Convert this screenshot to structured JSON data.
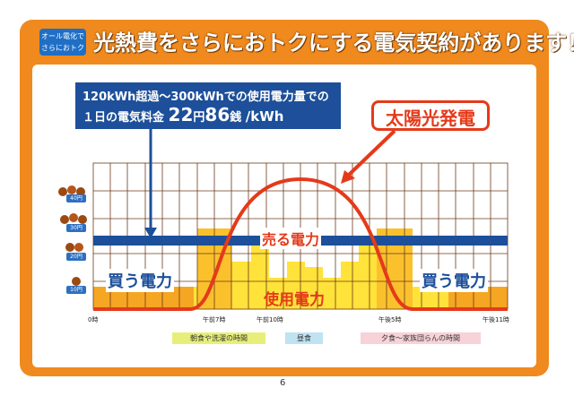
{
  "badge": {
    "line1": "オール電化で",
    "line2": "さらにおトク"
  },
  "headline": "光熱費をさらにおトクにする電気契約があります！",
  "callout": {
    "line1": "120kWh超過～300kWhでの使用電力量での",
    "line2_prefix": "１日の電気料金",
    "price_yen": "22",
    "yen_unit": "円",
    "price_sen": "86",
    "sen_unit": "銭",
    "per": "/kWh"
  },
  "solar_label": "太陽光発電",
  "labels": {
    "buy_left": "買う電力",
    "buy_right": "買う電力",
    "sell": "売る電力",
    "usage": "使用電力"
  },
  "y_ticks": [
    "40",
    "30",
    "20",
    "10"
  ],
  "y_tick_unit": "円",
  "x_ticks": [
    "0時",
    "午前7時",
    "午前10時",
    "午後5時",
    "午後11時"
  ],
  "time_bands": [
    "朝食や洗濯の時間",
    "昼食",
    "夕食～家族団らんの時間"
  ],
  "colors": {
    "frame": "#f08a1e",
    "navy": "#1d4f9a",
    "red": "#e53a1a",
    "yellow": "#ffe23a",
    "orange_block": "#f5a623",
    "grid": "#6b3a1a"
  },
  "page_number": "6"
}
